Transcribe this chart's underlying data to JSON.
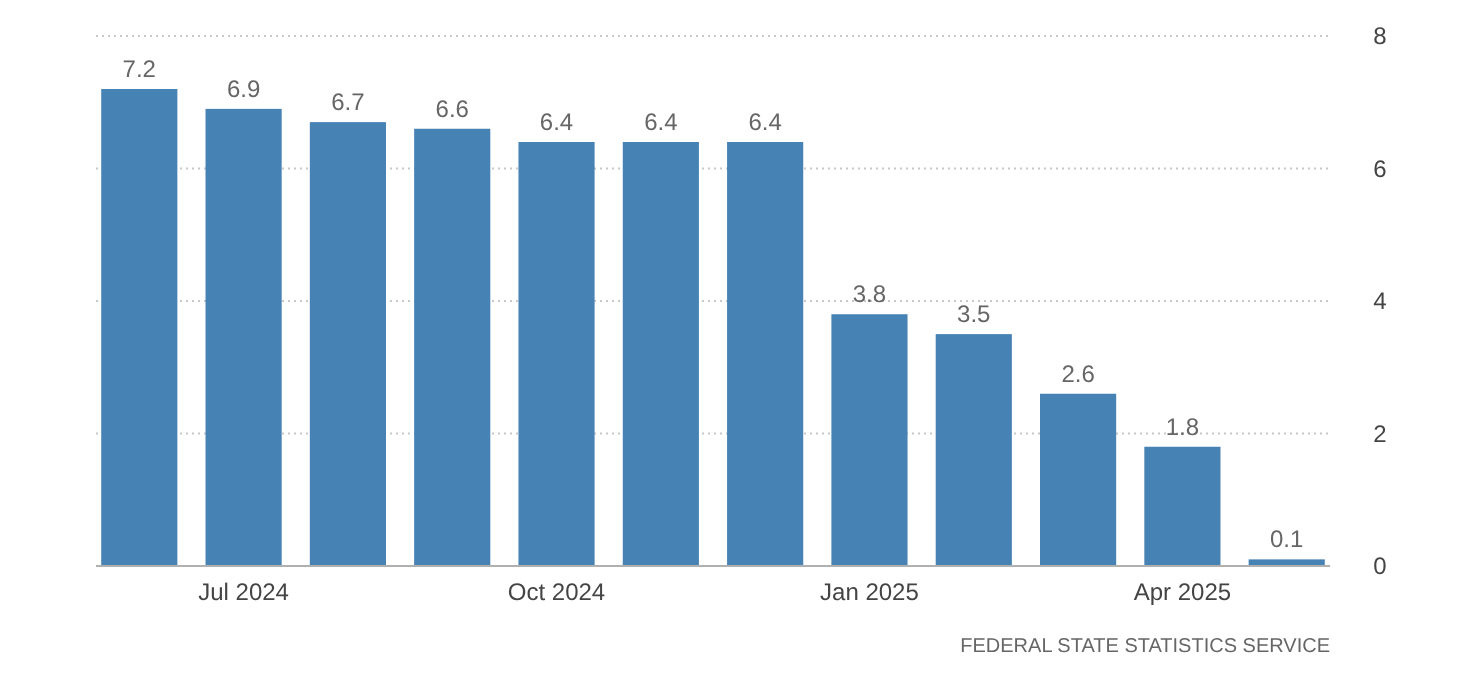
{
  "chart_data": {
    "type": "bar",
    "categories": [
      null,
      "Jul 2024",
      null,
      null,
      "Oct 2024",
      null,
      null,
      "Jan 2025",
      null,
      null,
      "Apr 2025",
      null
    ],
    "values": [
      7.2,
      6.9,
      6.7,
      6.6,
      6.4,
      6.4,
      6.4,
      3.8,
      3.5,
      2.6,
      1.8,
      0.1
    ],
    "color": "#4682b4",
    "ylim": [
      0,
      8
    ],
    "yticks": [
      0,
      2,
      4,
      6,
      8
    ],
    "grid": "y",
    "data_labels": true,
    "annotations": [
      "FEDERAL STATE STATISTICS SERVICE"
    ]
  }
}
